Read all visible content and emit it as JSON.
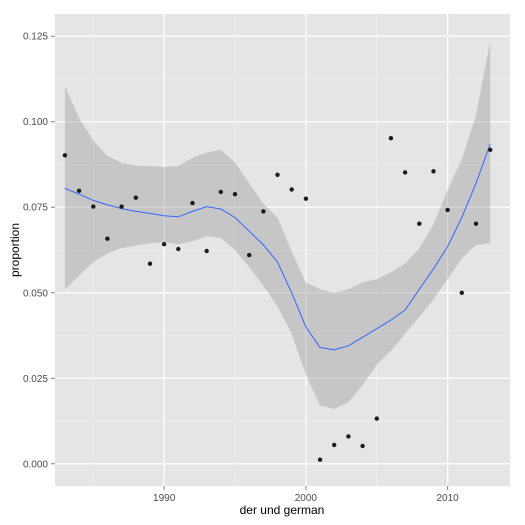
{
  "chart_data": {
    "type": "scatter",
    "xlabel": "der und german",
    "ylabel": "proportion",
    "xlim": [
      1982.3,
      2014.4
    ],
    "ylim": [
      -0.0065,
      0.1315
    ],
    "x_ticks": [
      1990,
      2000,
      2010
    ],
    "x_tick_labels": [
      "1990",
      "2000",
      "2010"
    ],
    "y_ticks": [
      0.0,
      0.025,
      0.05,
      0.075,
      0.1,
      0.125
    ],
    "y_tick_labels": [
      "0.000",
      "0.025",
      "0.050",
      "0.075",
      "0.100",
      "0.125"
    ],
    "grid": true,
    "legend": "none",
    "points": {
      "x": [
        1983,
        1984,
        1985,
        1986,
        1987,
        1988,
        1989,
        1990,
        1991,
        1992,
        1993,
        1994,
        1995,
        1996,
        1997,
        1998,
        1999,
        2000,
        2001,
        2002,
        2003,
        2004,
        2005,
        2006,
        2007,
        2008,
        2009,
        2010,
        2011,
        2012,
        2013
      ],
      "y": [
        0.0902,
        0.0798,
        0.0752,
        0.0658,
        0.0752,
        0.0778,
        0.0585,
        0.0642,
        0.0628,
        0.0762,
        0.0622,
        0.0795,
        0.0788,
        0.061,
        0.0738,
        0.0845,
        0.0802,
        0.0775,
        0.0012,
        0.0055,
        0.008,
        0.0052,
        0.0132,
        0.0952,
        0.0852,
        0.0702,
        0.0855,
        0.0742,
        0.05,
        0.0702,
        0.0918
      ]
    },
    "smooth": {
      "x": [
        1983,
        1984,
        1985,
        1986,
        1987,
        1988,
        1989,
        1990,
        1991,
        1992,
        1993,
        1994,
        1995,
        1996,
        1997,
        1998,
        1999,
        2000,
        2001,
        2002,
        2003,
        2004,
        2005,
        2006,
        2007,
        2008,
        2009,
        2010,
        2011,
        2012,
        2013
      ],
      "y": [
        0.0805,
        0.0788,
        0.077,
        0.0757,
        0.0746,
        0.0738,
        0.0732,
        0.0725,
        0.0722,
        0.0738,
        0.0752,
        0.0745,
        0.072,
        0.068,
        0.064,
        0.059,
        0.05,
        0.04,
        0.034,
        0.0333,
        0.0345,
        0.037,
        0.0395,
        0.042,
        0.045,
        0.051,
        0.057,
        0.0635,
        0.072,
        0.082,
        0.0935
      ],
      "lower": [
        0.051,
        0.055,
        0.059,
        0.0615,
        0.063,
        0.0638,
        0.0645,
        0.0648,
        0.0642,
        0.065,
        0.0665,
        0.066,
        0.0625,
        0.0575,
        0.052,
        0.046,
        0.038,
        0.026,
        0.017,
        0.016,
        0.018,
        0.023,
        0.029,
        0.033,
        0.038,
        0.043,
        0.048,
        0.054,
        0.06,
        0.064,
        0.0645
      ],
      "upper": [
        0.1105,
        0.101,
        0.0945,
        0.09,
        0.088,
        0.0872,
        0.087,
        0.0868,
        0.087,
        0.0895,
        0.091,
        0.0918,
        0.088,
        0.082,
        0.076,
        0.072,
        0.062,
        0.053,
        0.051,
        0.05,
        0.051,
        0.053,
        0.054,
        0.056,
        0.0585,
        0.063,
        0.07,
        0.08,
        0.089,
        0.102,
        0.1235
      ]
    },
    "colors": {
      "panel": "#e5e5e5",
      "grid_major": "#ffffff",
      "grid_minor": "#f2f2f2",
      "points": "#1a1a1a",
      "line": "#3366ff",
      "ribbon": "#999999",
      "ticks": "#7f7f7f"
    }
  }
}
